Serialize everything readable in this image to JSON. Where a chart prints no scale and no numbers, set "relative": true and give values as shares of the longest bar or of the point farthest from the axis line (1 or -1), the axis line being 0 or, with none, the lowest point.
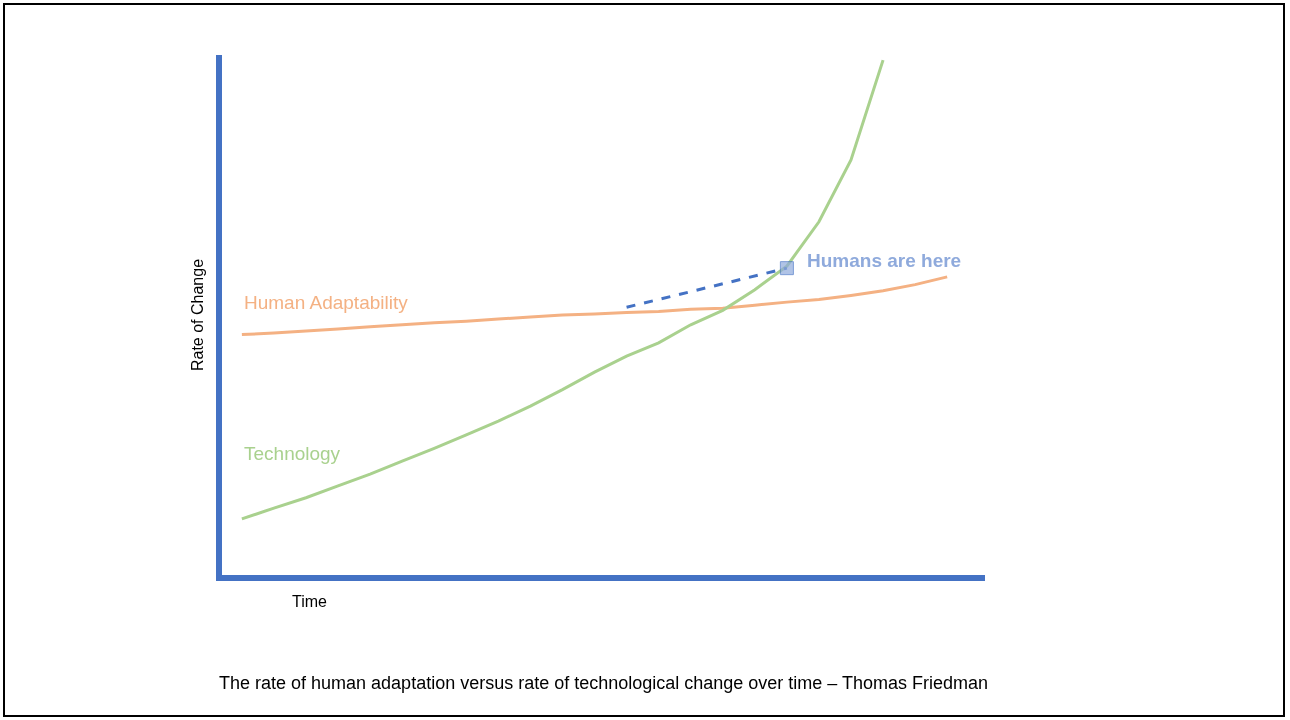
{
  "chart_data": {
    "type": "line",
    "relative": true,
    "ylabel": "Rate of Change",
    "xlabel": "Time",
    "grid": false,
    "line_style": "solid",
    "marker": "none",
    "categories": [
      null,
      null,
      null,
      null,
      null,
      null,
      null,
      null,
      null,
      null,
      null,
      null,
      null,
      null,
      null,
      null,
      null,
      null,
      null,
      null,
      null,
      null,
      null
    ],
    "series": [
      {
        "name": "Human Adaptability",
        "color": "#f4b183",
        "values": [
          0.467,
          0.47,
          0.474,
          0.478,
          0.482,
          0.486,
          0.49,
          0.493,
          0.497,
          0.501,
          0.505,
          0.507,
          0.51,
          0.512,
          0.516,
          0.518,
          0.524,
          0.53,
          0.535,
          0.543,
          0.552,
          0.564,
          0.579
        ]
      },
      {
        "name": "Technology",
        "color": "#a9d18e",
        "values": [
          0.109,
          0.13,
          0.15,
          0.173,
          0.196,
          0.221,
          0.246,
          0.272,
          0.299,
          0.328,
          0.36,
          0.394,
          0.425,
          0.451,
          0.486,
          0.514,
          0.554,
          0.6,
          0.686,
          0.806,
          1.0,
          null,
          null
        ]
      },
      {
        "name": "Humans are here",
        "color": "#4472c4",
        "line_style": "dashed",
        "marker": "square",
        "values": [
          null,
          null,
          null,
          null,
          null,
          null,
          null,
          null,
          null,
          null,
          null,
          null,
          0.52,
          null,
          null,
          null,
          null,
          0.596,
          null,
          null,
          null,
          null,
          null
        ]
      }
    ],
    "annotations": [
      "The rate of human adaptation versus rate of technological change over time – Thomas Friedman"
    ]
  }
}
